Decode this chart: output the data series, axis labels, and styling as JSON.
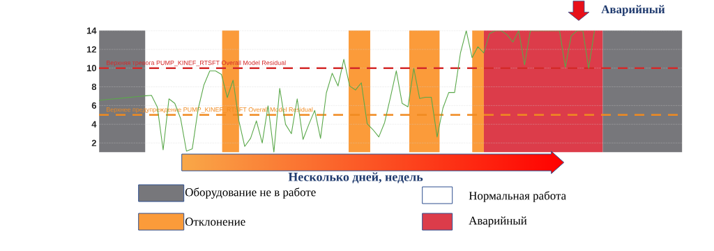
{
  "chart_data": {
    "type": "line",
    "ylim": [
      1,
      14
    ],
    "yticks": [
      2,
      4,
      6,
      8,
      10,
      12,
      14
    ],
    "tick_labels": "y",
    "grid": "y",
    "marker": "none",
    "line_style": "solid",
    "categories": [
      null,
      null,
      null,
      null,
      null,
      null,
      null,
      null,
      null,
      null,
      null,
      null,
      null,
      null,
      null,
      null,
      null,
      null,
      null,
      null,
      null,
      null,
      null,
      null,
      null,
      null,
      null,
      null,
      null,
      null,
      null,
      null,
      null,
      null,
      null,
      null,
      null,
      null,
      null,
      null,
      null,
      null,
      null,
      null,
      null,
      null,
      null,
      null,
      null,
      null,
      null,
      null,
      null,
      null,
      null,
      null,
      null,
      null,
      null,
      null,
      null,
      null,
      null,
      null,
      null,
      null,
      null,
      null,
      null,
      null,
      null,
      null,
      null,
      null,
      null,
      null,
      null,
      null,
      null,
      null,
      null,
      null,
      null,
      null,
      null,
      null
    ],
    "series": [
      {
        "color": "#5aa84a",
        "values": [
          6.55,
          6.63,
          6.68,
          6.74,
          6.8,
          6.86,
          6.92,
          6.98,
          7.04,
          7.09,
          5.85,
          1.26,
          6.72,
          6.23,
          4.61,
          1.13,
          1.38,
          5.6,
          8.21,
          9.7,
          9.7,
          9.33,
          6.85,
          8.71,
          4.36,
          1.63,
          2.5,
          4.36,
          2.0,
          5.97,
          1.01,
          7.84,
          3.99,
          2.99,
          6.72,
          2.38,
          3.99,
          5.48,
          2.5,
          7.35,
          9.45,
          8.09,
          10.94,
          8.09,
          7.66,
          8.43,
          4.06,
          3.42,
          2.65,
          4.19,
          6.89,
          9.71,
          6.24,
          5.86,
          9.97,
          6.76,
          6.89,
          6.89,
          2.65,
          5.73,
          7.4,
          7.4,
          11.6,
          14,
          11.12,
          12.28,
          11.63,
          13.69,
          14,
          14,
          13.56,
          12.79,
          14,
          10.35,
          14,
          null,
          null,
          null,
          null,
          14,
          10.1,
          13.43,
          14,
          14,
          9.97,
          14
        ]
      }
    ],
    "ref_lines": [
      {
        "axis": "y",
        "value": 10,
        "label": "Верхняя тревога PUMP_KINEF_RTSFT Overall Model Residual",
        "color": "#d42a2a",
        "line_style": "dashed"
      },
      {
        "axis": "y",
        "value": 5,
        "label": "Верхнее предупреждение PUMP_KINEF_RTSFT Overall Model Residual",
        "color": "#f08a20",
        "line_style": "dashed"
      }
    ],
    "annotations": [
      "Аварийный",
      "Несколько дней, недель",
      "Оборудование не в работе",
      "Отклонение",
      "Нормальная работа",
      "Аварийный"
    ]
  }
}
